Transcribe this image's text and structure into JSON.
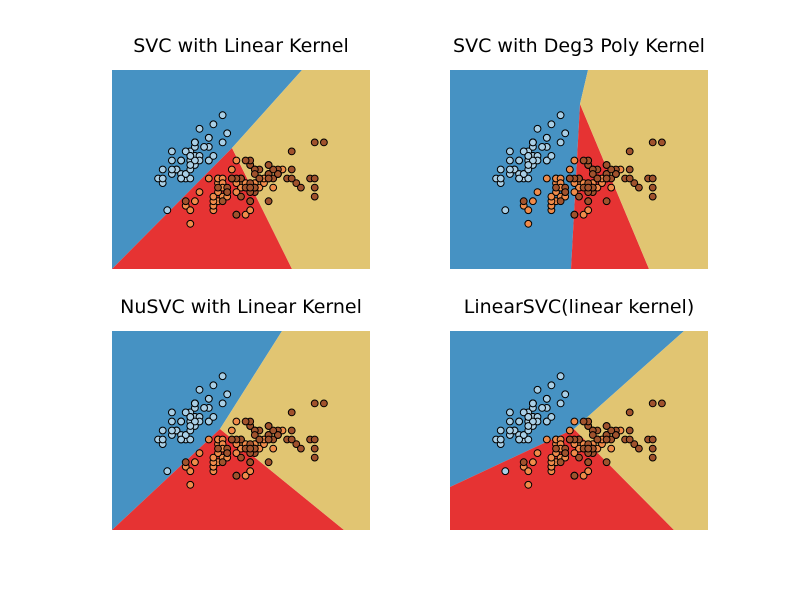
{
  "figure": {
    "colors": {
      "class_blue_region": "#4692c3",
      "class_red_region": "#e63333",
      "class_yellow_region": "#e1c572",
      "point_blue": "#a9cfe6",
      "point_orange": "#f08b4a",
      "point_brown": "#a0522d",
      "point_edge": "#000000"
    }
  },
  "chart_data": [
    {
      "type": "scatter",
      "title": "SVC with Linear Kernel",
      "xlabel": "",
      "ylabel": "",
      "xlim": [
        3.3,
        8.9
      ],
      "ylim": [
        1.0,
        5.4
      ],
      "axes_visible": false,
      "grid": false,
      "regions": {
        "colors": [
          "#4692c3",
          "#e63333",
          "#e1c572"
        ]
      },
      "series_ref": "iris_sepal"
    },
    {
      "type": "scatter",
      "title": "SVC with Deg3 Poly Kernel",
      "xlabel": "",
      "ylabel": "",
      "xlim": [
        3.3,
        8.9
      ],
      "ylim": [
        1.0,
        5.4
      ],
      "axes_visible": false,
      "grid": false,
      "regions": {
        "colors": [
          "#4692c3",
          "#e63333",
          "#e1c572"
        ]
      },
      "series_ref": "iris_sepal"
    },
    {
      "type": "scatter",
      "title": "NuSVC with Linear Kernel",
      "xlabel": "",
      "ylabel": "",
      "xlim": [
        3.3,
        8.9
      ],
      "ylim": [
        1.0,
        5.4
      ],
      "axes_visible": false,
      "grid": false,
      "regions": {
        "colors": [
          "#4692c3",
          "#e63333",
          "#e1c572"
        ]
      },
      "series_ref": "iris_sepal"
    },
    {
      "type": "scatter",
      "title": "LinearSVC(linear kernel)",
      "xlabel": "",
      "ylabel": "",
      "xlim": [
        3.3,
        8.9
      ],
      "ylim": [
        1.0,
        5.4
      ],
      "axes_visible": false,
      "grid": false,
      "regions": {
        "colors": [
          "#4692c3",
          "#e63333",
          "#e1c572"
        ]
      },
      "series_ref": "iris_sepal"
    }
  ],
  "series": [
    {
      "class": 0,
      "color": "#a9cfe6",
      "points": [
        [
          5.1,
          3.5
        ],
        [
          4.9,
          3.0
        ],
        [
          4.7,
          3.2
        ],
        [
          4.6,
          3.1
        ],
        [
          5.0,
          3.6
        ],
        [
          5.4,
          3.9
        ],
        [
          4.6,
          3.4
        ],
        [
          5.0,
          3.4
        ],
        [
          4.4,
          2.9
        ],
        [
          4.9,
          3.1
        ],
        [
          5.4,
          3.7
        ],
        [
          4.8,
          3.4
        ],
        [
          4.8,
          3.0
        ],
        [
          4.3,
          3.0
        ],
        [
          5.8,
          4.0
        ],
        [
          5.7,
          4.4
        ],
        [
          5.4,
          3.9
        ],
        [
          5.1,
          3.5
        ],
        [
          5.7,
          3.8
        ],
        [
          5.1,
          3.8
        ],
        [
          5.4,
          3.4
        ],
        [
          5.1,
          3.7
        ],
        [
          4.6,
          3.6
        ],
        [
          5.1,
          3.3
        ],
        [
          4.8,
          3.4
        ],
        [
          5.0,
          3.0
        ],
        [
          5.0,
          3.4
        ],
        [
          5.2,
          3.5
        ],
        [
          5.2,
          3.4
        ],
        [
          4.7,
          3.2
        ],
        [
          4.8,
          3.1
        ],
        [
          5.4,
          3.4
        ],
        [
          5.2,
          4.1
        ],
        [
          5.5,
          4.2
        ],
        [
          4.9,
          3.1
        ],
        [
          5.0,
          3.2
        ],
        [
          5.5,
          3.5
        ],
        [
          4.9,
          3.6
        ],
        [
          4.4,
          3.0
        ],
        [
          5.1,
          3.4
        ],
        [
          5.0,
          3.5
        ],
        [
          4.5,
          2.3
        ],
        [
          4.4,
          3.2
        ],
        [
          5.0,
          3.5
        ],
        [
          5.1,
          3.8
        ],
        [
          4.8,
          3.0
        ],
        [
          5.1,
          3.8
        ],
        [
          4.6,
          3.2
        ],
        [
          5.3,
          3.7
        ],
        [
          5.0,
          3.3
        ]
      ]
    },
    {
      "class": 1,
      "color": "#f08b4a",
      "points": [
        [
          7.0,
          3.2
        ],
        [
          6.4,
          3.2
        ],
        [
          6.9,
          3.1
        ],
        [
          5.5,
          2.3
        ],
        [
          6.5,
          2.8
        ],
        [
          5.7,
          2.8
        ],
        [
          6.3,
          3.3
        ],
        [
          4.9,
          2.4
        ],
        [
          6.6,
          2.9
        ],
        [
          5.2,
          2.7
        ],
        [
          5.0,
          2.0
        ],
        [
          5.9,
          3.0
        ],
        [
          6.0,
          2.2
        ],
        [
          6.1,
          2.9
        ],
        [
          5.6,
          2.9
        ],
        [
          6.7,
          3.1
        ],
        [
          5.6,
          3.0
        ],
        [
          5.8,
          2.7
        ],
        [
          6.2,
          2.2
        ],
        [
          5.6,
          2.5
        ],
        [
          5.9,
          3.2
        ],
        [
          6.1,
          2.8
        ],
        [
          6.3,
          2.5
        ],
        [
          6.1,
          2.8
        ],
        [
          6.4,
          2.9
        ],
        [
          6.6,
          3.0
        ],
        [
          6.8,
          2.8
        ],
        [
          6.7,
          3.0
        ],
        [
          6.0,
          2.9
        ],
        [
          5.7,
          2.6
        ],
        [
          5.5,
          2.4
        ],
        [
          5.5,
          2.4
        ],
        [
          5.8,
          2.7
        ],
        [
          6.0,
          2.7
        ],
        [
          5.4,
          3.0
        ],
        [
          6.0,
          3.4
        ],
        [
          6.7,
          3.1
        ],
        [
          6.3,
          2.3
        ],
        [
          5.6,
          3.0
        ],
        [
          5.5,
          2.5
        ],
        [
          5.5,
          2.6
        ],
        [
          6.1,
          3.0
        ],
        [
          5.8,
          2.6
        ],
        [
          5.0,
          2.3
        ],
        [
          5.6,
          2.7
        ],
        [
          5.7,
          3.0
        ],
        [
          5.7,
          2.9
        ],
        [
          6.2,
          2.9
        ],
        [
          5.1,
          2.5
        ],
        [
          5.7,
          2.8
        ]
      ]
    },
    {
      "class": 2,
      "color": "#a0522d",
      "points": [
        [
          6.3,
          3.3
        ],
        [
          5.8,
          2.7
        ],
        [
          7.1,
          3.0
        ],
        [
          6.3,
          2.9
        ],
        [
          6.5,
          3.0
        ],
        [
          7.6,
          3.0
        ],
        [
          4.9,
          2.5
        ],
        [
          7.3,
          2.9
        ],
        [
          6.7,
          2.5
        ],
        [
          7.2,
          3.6
        ],
        [
          6.5,
          3.2
        ],
        [
          6.4,
          2.7
        ],
        [
          6.8,
          3.0
        ],
        [
          5.7,
          2.5
        ],
        [
          5.8,
          2.8
        ],
        [
          6.4,
          3.2
        ],
        [
          6.5,
          3.0
        ],
        [
          7.7,
          3.8
        ],
        [
          7.7,
          2.6
        ],
        [
          6.0,
          2.2
        ],
        [
          6.9,
          3.2
        ],
        [
          5.6,
          2.8
        ],
        [
          7.7,
          2.8
        ],
        [
          6.3,
          2.7
        ],
        [
          6.7,
          3.3
        ],
        [
          7.2,
          3.2
        ],
        [
          6.2,
          2.8
        ],
        [
          6.1,
          3.0
        ],
        [
          6.4,
          2.8
        ],
        [
          7.2,
          3.0
        ],
        [
          7.4,
          2.8
        ],
        [
          7.9,
          3.8
        ],
        [
          6.4,
          2.8
        ],
        [
          6.3,
          2.8
        ],
        [
          6.1,
          2.6
        ],
        [
          7.7,
          3.0
        ],
        [
          6.3,
          3.4
        ],
        [
          6.4,
          3.1
        ],
        [
          6.0,
          3.0
        ],
        [
          6.9,
          3.1
        ],
        [
          6.7,
          3.1
        ],
        [
          6.9,
          3.1
        ],
        [
          5.8,
          2.7
        ],
        [
          6.8,
          3.2
        ],
        [
          6.7,
          3.3
        ],
        [
          6.7,
          3.0
        ],
        [
          6.3,
          2.5
        ],
        [
          6.5,
          3.0
        ],
        [
          6.2,
          3.4
        ],
        [
          5.9,
          3.0
        ]
      ]
    }
  ]
}
